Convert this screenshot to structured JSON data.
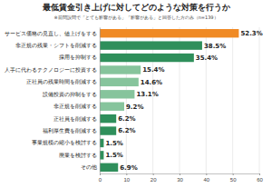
{
  "chart_data": {
    "type": "bar",
    "orientation": "horizontal",
    "title": "最低賃金引き上げに対してどのような対策を行うか",
    "subtitle": "※前問設問で「とても影響がある」「影響がある」と回答した方のみ（n=139）",
    "categories": [
      "サービス価格の見直し、値上げをする",
      "非正規の残業・シフトを削減する",
      "採用を抑制する",
      "人手に代わるテクノロジーに投資する",
      "正社員の残業時間を削減する",
      "設備投資の抑制をする",
      "非正規を削減する",
      "正社員を削減する",
      "福利厚生費を削減する",
      "事業規模の縮小を検討する",
      "廃業を検討する",
      "その他"
    ],
    "values": [
      52.3,
      38.5,
      35.4,
      15.4,
      14.6,
      13.1,
      9.2,
      6.2,
      6.2,
      1.5,
      1.5,
      6.9
    ],
    "value_labels": [
      "52.3%",
      "38.5%",
      "35.4%",
      "15.4%",
      "14.6%",
      "13.1%",
      "9.2%",
      "6.2%",
      "6.2%",
      "1.5%",
      "1.5%",
      "6.9%"
    ],
    "colors": [
      "#f08a24",
      "#2f8f5b",
      "#2f8f5b",
      "#86c49c",
      "#86c49c",
      "#86c49c",
      "#86c49c",
      "#2f8f5b",
      "#2f8f5b",
      "#2f8f5b",
      "#2f8f5b",
      "#2f8f5b"
    ],
    "xlim": [
      0,
      60
    ],
    "xticks": [
      0,
      10,
      20,
      30,
      40,
      50,
      60
    ],
    "grid": true,
    "data_labels": true
  }
}
